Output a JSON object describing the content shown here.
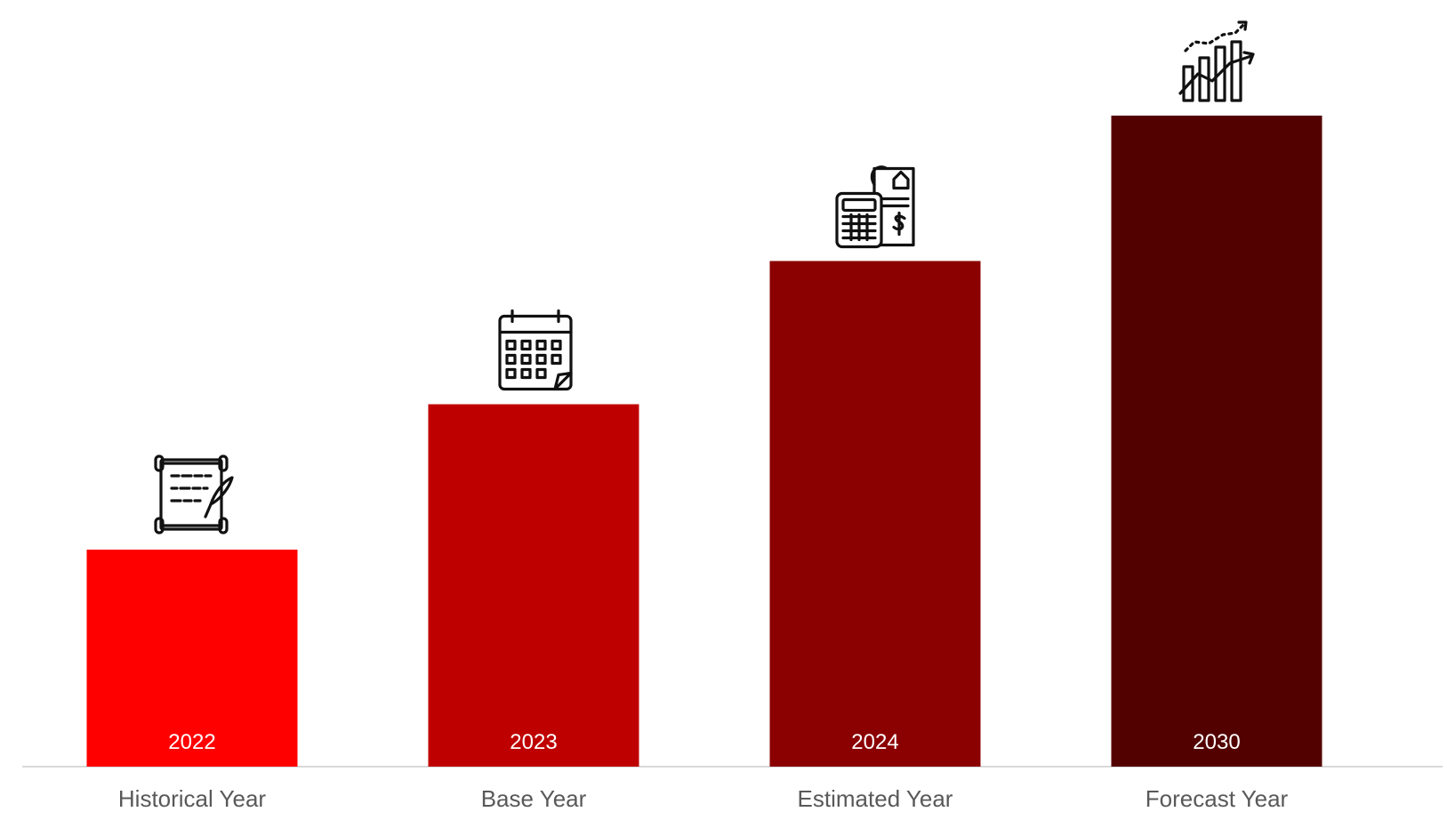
{
  "chart_data": {
    "type": "bar",
    "categories": [
      "Historical Year",
      "Base Year",
      "Estimated Year",
      "Forecast Year"
    ],
    "year_labels": [
      "2022",
      "2023",
      "2024",
      "2030"
    ],
    "values": [
      1,
      1.67,
      2.33,
      3
    ],
    "value_axis": "not shown (relative heights only)",
    "colors": [
      "#ff0000",
      "#bf0000",
      "#8b0000",
      "#530000"
    ],
    "icons": [
      "scroll-quill-icon",
      "calendar-icon",
      "calculator-invoice-icon",
      "growth-chart-icon"
    ],
    "title": "",
    "xlabel": "",
    "ylabel": "",
    "grid": false,
    "legend": "none"
  }
}
